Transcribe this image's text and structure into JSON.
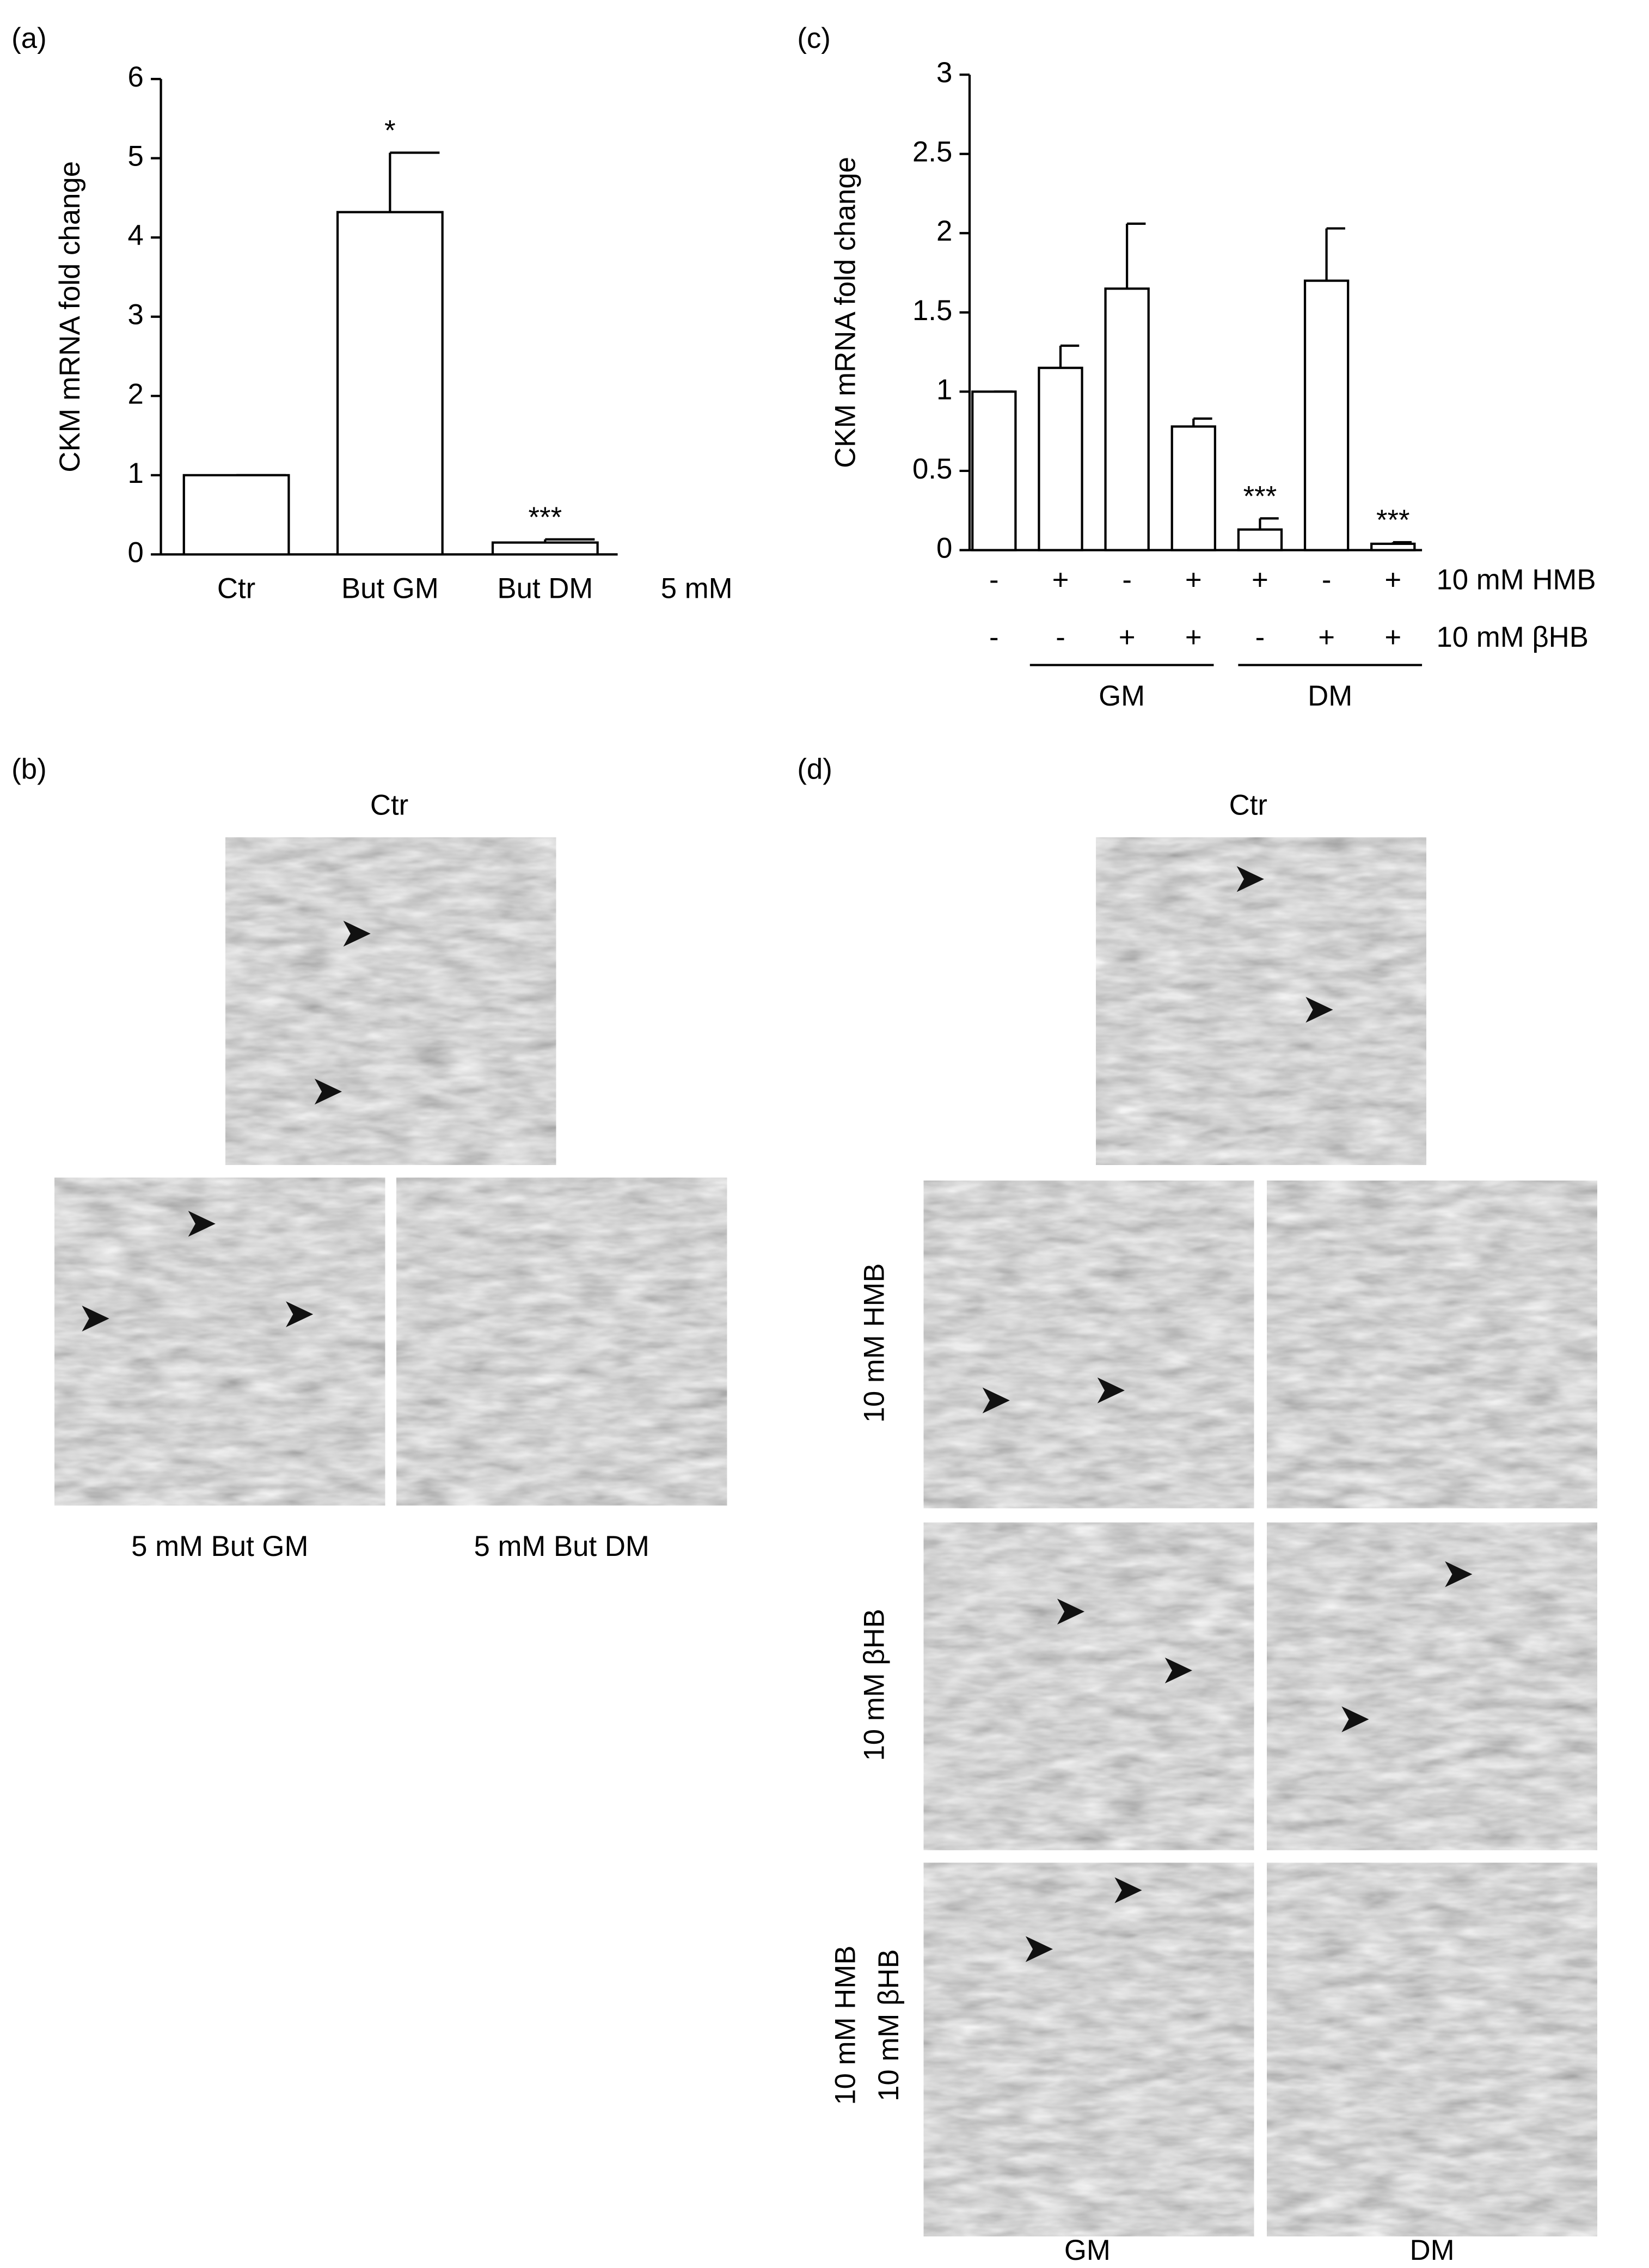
{
  "chart_data": [
    {
      "type": "bar",
      "panel": "(a)",
      "y_label": "CKM mRNA fold change",
      "categories": [
        "Ctr",
        "But GM",
        "But DM"
      ],
      "concentration_label": "5 mM",
      "values": [
        1,
        4.32,
        0.15
      ],
      "errors": [
        0,
        0.75,
        0.04
      ],
      "annotations": [
        null,
        "*",
        "***"
      ],
      "color": "#ffffff",
      "ylim": [
        0,
        6
      ],
      "yticks": [
        0,
        1,
        2,
        3,
        4,
        5,
        6
      ]
    },
    {
      "type": "bar",
      "panel": "(c)",
      "y_label": "CKM mRNA fold change",
      "categories": [
        null,
        null,
        null,
        null,
        null,
        null,
        null
      ],
      "values": [
        1,
        1.15,
        1.65,
        0.78,
        0.13,
        1.7,
        0.04
      ],
      "errors": [
        0,
        0.14,
        0.41,
        0.05,
        0.07,
        0.33,
        0.01
      ],
      "annotations": [
        null,
        null,
        null,
        null,
        "***",
        null,
        "***"
      ],
      "treatments": [
        {
          "name": "10 mM HMB",
          "signs": [
            "-",
            "+",
            "-",
            "+",
            "+",
            "-",
            "+"
          ]
        },
        {
          "name": "10 mM βHB",
          "signs": [
            "-",
            "-",
            "+",
            "+",
            "-",
            "+",
            "+"
          ]
        }
      ],
      "groups": [
        "GM",
        "DM"
      ],
      "color": "#ffffff",
      "ylim": [
        0,
        3
      ],
      "yticks": [
        0,
        0.5,
        1,
        1.5,
        2,
        2.5,
        3
      ]
    }
  ],
  "micrographs": {
    "b": {
      "panel": "(b)",
      "top_label": "Ctr",
      "captions": [
        "5 mM But GM",
        "5 mM But DM"
      ]
    },
    "d": {
      "panel": "(d)",
      "top_label": "Ctr",
      "row_labels": [
        "10 mM HMB",
        "10 mM βHB",
        [
          "10 mM HMB",
          "10 mM βHB"
        ]
      ],
      "column_labels": [
        "GM",
        "DM"
      ]
    }
  }
}
